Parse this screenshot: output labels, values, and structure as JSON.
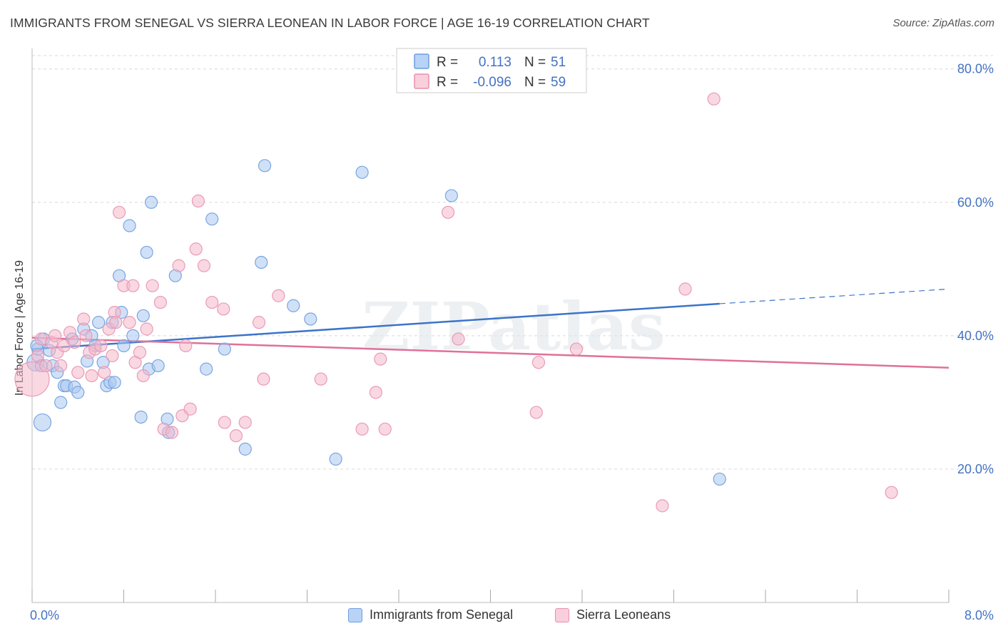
{
  "title": "IMMIGRANTS FROM SENEGAL VS SIERRA LEONEAN IN LABOR FORCE | AGE 16-19 CORRELATION CHART",
  "source": "Source: ZipAtlas.com",
  "watermark": "ZIPatlas",
  "legend": {
    "r_label": "R =",
    "n_label": "N =",
    "rows": [
      {
        "r": "0.113",
        "n": "51"
      },
      {
        "r": "-0.096",
        "n": "59"
      }
    ]
  },
  "colors": {
    "blue": "#3b74c9",
    "blue_fill": "#a9c8f0",
    "pink": "#e07099",
    "pink_fill": "#f4b8cb",
    "tick": "#4472c4"
  },
  "chart_data": {
    "type": "scatter",
    "title": "IMMIGRANTS FROM SENEGAL VS SIERRA LEONEAN IN LABOR FORCE | AGE 16-19 CORRELATION CHART",
    "xlabel": "",
    "ylabel": "In Labor Force | Age 16-19",
    "xlim": [
      0,
      8
    ],
    "ylim": [
      0,
      82
    ],
    "x_tick_labels": [
      "0.0%",
      "8.0%"
    ],
    "y_ticks": [
      20,
      40,
      60,
      80
    ],
    "y_tick_labels": [
      "20.0%",
      "40.0%",
      "60.0%",
      "80.0%"
    ],
    "series": [
      {
        "name": "Immigrants from Senegal",
        "color": "blue",
        "trend": {
          "x0": 0,
          "y0": 38.0,
          "x1": 6.0,
          "y1": 44.8,
          "dash_to_x": 8.0,
          "dash_to_y": 47.0
        },
        "points": [
          [
            0.03,
            36.0,
            2
          ],
          [
            0.05,
            38.0,
            1
          ],
          [
            0.08,
            35.5,
            1
          ],
          [
            0.1,
            39.5,
            1
          ],
          [
            0.15,
            37.8,
            1
          ],
          [
            0.18,
            35.5,
            1
          ],
          [
            0.22,
            34.5,
            1
          ],
          [
            0.25,
            30.0,
            1
          ],
          [
            0.28,
            32.5,
            1
          ],
          [
            0.3,
            32.5,
            1
          ],
          [
            0.35,
            39.5,
            1
          ],
          [
            0.37,
            32.3,
            1
          ],
          [
            0.4,
            31.5,
            1
          ],
          [
            0.45,
            41.0,
            1
          ],
          [
            0.48,
            36.2,
            1
          ],
          [
            0.52,
            40.0,
            1
          ],
          [
            0.55,
            38.5,
            1
          ],
          [
            0.58,
            42.0,
            1
          ],
          [
            0.62,
            36.0,
            1
          ],
          [
            0.65,
            32.5,
            1
          ],
          [
            0.68,
            33.0,
            1
          ],
          [
            0.7,
            42.0,
            1
          ],
          [
            0.72,
            33.0,
            1
          ],
          [
            0.76,
            49.0,
            1
          ],
          [
            0.78,
            43.5,
            1
          ],
          [
            0.8,
            38.5,
            1
          ],
          [
            0.85,
            56.5,
            1
          ],
          [
            0.88,
            40.0,
            1
          ],
          [
            0.95,
            27.8,
            1
          ],
          [
            0.97,
            43.0,
            1
          ],
          [
            1.0,
            52.5,
            1
          ],
          [
            1.02,
            35.0,
            1
          ],
          [
            1.04,
            60.0,
            1
          ],
          [
            1.1,
            35.5,
            1
          ],
          [
            1.18,
            27.5,
            1
          ],
          [
            1.19,
            25.5,
            1
          ],
          [
            1.25,
            49.0,
            1
          ],
          [
            1.52,
            35.0,
            1
          ],
          [
            1.57,
            57.5,
            1
          ],
          [
            1.68,
            38.0,
            1
          ],
          [
            1.86,
            23.0,
            1
          ],
          [
            2.0,
            51.0,
            1
          ],
          [
            2.03,
            65.5,
            1
          ],
          [
            2.28,
            44.5,
            1
          ],
          [
            2.43,
            42.5,
            1
          ],
          [
            2.65,
            21.5,
            1
          ],
          [
            2.88,
            64.5,
            1
          ],
          [
            3.66,
            61.0,
            1
          ],
          [
            6.0,
            18.5,
            1
          ],
          [
            0.09,
            27.0,
            2
          ],
          [
            0.04,
            38.5,
            1
          ]
        ]
      },
      {
        "name": "Sierra Leoneans",
        "color": "pink",
        "trend": {
          "x0": 0,
          "y0": 39.7,
          "x1": 8.0,
          "y1": 35.2
        },
        "points": [
          [
            0.0,
            33.5,
            3
          ],
          [
            0.05,
            37.0,
            1
          ],
          [
            0.08,
            39.5,
            1
          ],
          [
            0.12,
            35.5,
            1
          ],
          [
            0.17,
            39.0,
            1
          ],
          [
            0.2,
            40.0,
            1
          ],
          [
            0.22,
            37.5,
            1
          ],
          [
            0.25,
            35.5,
            1
          ],
          [
            0.28,
            38.5,
            1
          ],
          [
            0.33,
            40.5,
            1
          ],
          [
            0.37,
            39.0,
            1
          ],
          [
            0.4,
            34.5,
            1
          ],
          [
            0.45,
            42.5,
            1
          ],
          [
            0.47,
            40.0,
            1
          ],
          [
            0.5,
            37.5,
            1
          ],
          [
            0.52,
            34.0,
            1
          ],
          [
            0.55,
            38.0,
            1
          ],
          [
            0.6,
            38.5,
            1
          ],
          [
            0.63,
            34.5,
            1
          ],
          [
            0.67,
            41.0,
            1
          ],
          [
            0.7,
            37.0,
            1
          ],
          [
            0.72,
            43.5,
            1
          ],
          [
            0.73,
            42.0,
            1
          ],
          [
            0.76,
            58.5,
            1
          ],
          [
            0.8,
            47.5,
            1
          ],
          [
            0.85,
            42.0,
            1
          ],
          [
            0.88,
            47.5,
            1
          ],
          [
            0.9,
            36.0,
            1
          ],
          [
            0.94,
            37.5,
            1
          ],
          [
            0.97,
            34.0,
            1
          ],
          [
            1.0,
            41.0,
            1
          ],
          [
            1.05,
            47.5,
            1
          ],
          [
            1.12,
            45.0,
            1
          ],
          [
            1.15,
            26.0,
            1
          ],
          [
            1.22,
            25.5,
            1
          ],
          [
            1.28,
            50.5,
            1
          ],
          [
            1.31,
            28.0,
            1
          ],
          [
            1.34,
            38.5,
            1
          ],
          [
            1.38,
            29.0,
            1
          ],
          [
            1.43,
            53.0,
            1
          ],
          [
            1.45,
            60.2,
            1
          ],
          [
            1.5,
            50.5,
            1
          ],
          [
            1.57,
            45.0,
            1
          ],
          [
            1.67,
            44.0,
            1
          ],
          [
            1.68,
            27.0,
            1
          ],
          [
            1.78,
            25.0,
            1
          ],
          [
            1.86,
            27.0,
            1
          ],
          [
            1.98,
            42.0,
            1
          ],
          [
            2.02,
            33.5,
            1
          ],
          [
            2.15,
            46.0,
            1
          ],
          [
            2.52,
            33.5,
            1
          ],
          [
            2.88,
            26.0,
            1
          ],
          [
            3.0,
            31.5,
            1
          ],
          [
            3.04,
            36.5,
            1
          ],
          [
            3.08,
            26.0,
            1
          ],
          [
            3.63,
            58.5,
            1
          ],
          [
            3.72,
            39.5,
            1
          ],
          [
            4.4,
            28.5,
            1
          ],
          [
            4.42,
            36.0,
            1
          ],
          [
            4.75,
            38.0,
            1
          ],
          [
            5.5,
            14.5,
            1
          ],
          [
            5.7,
            47.0,
            1
          ],
          [
            5.95,
            75.5,
            1
          ],
          [
            7.5,
            16.5,
            1
          ]
        ]
      }
    ]
  },
  "bottom_legend": [
    {
      "label": "Immigrants from Senegal"
    },
    {
      "label": "Sierra Leoneans"
    }
  ]
}
